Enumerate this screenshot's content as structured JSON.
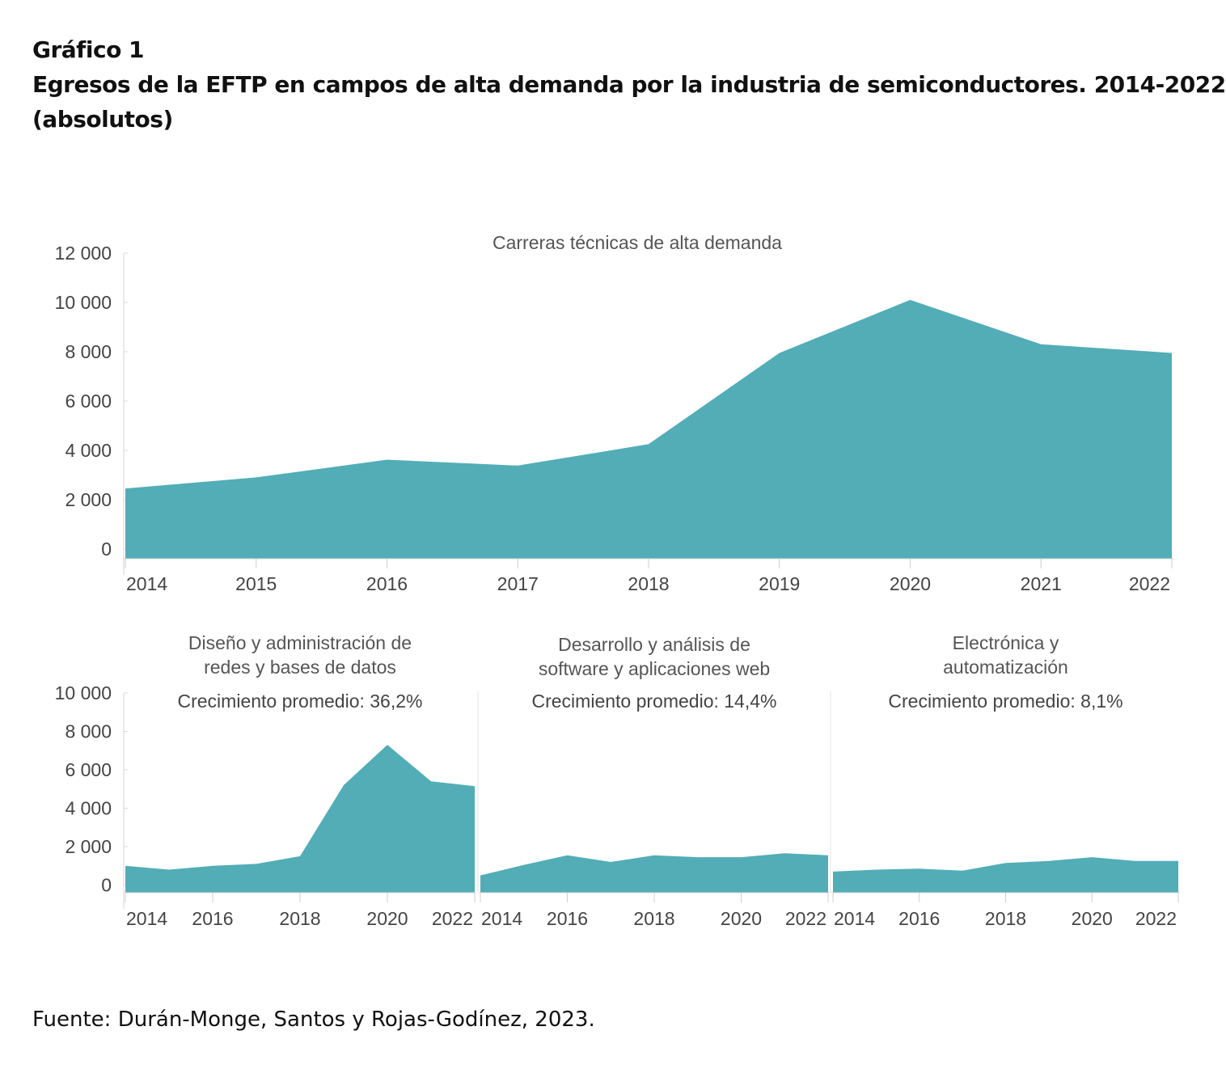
{
  "figure": {
    "number": "Gráfico 1",
    "title": "Egresos de la EFTP en campos de alta demanda por la industria de semiconductores. 2014-2022",
    "units": "(absolutos)",
    "source": "Fuente: Durán-Monge, Santos y Rojas-Godínez, 2023."
  },
  "chart_data": [
    {
      "type": "area",
      "title": "Carreras técnicas de alta demanda",
      "x": [
        2014,
        2015,
        2016,
        2017,
        2018,
        2019,
        2020,
        2021,
        2022
      ],
      "values": [
        2450,
        2900,
        3620,
        3380,
        4250,
        7950,
        10100,
        8300,
        7950
      ],
      "x_ticks": [
        "2014",
        "2015",
        "2016",
        "2017",
        "2018",
        "2019",
        "2020",
        "2021",
        "2022"
      ],
      "y_ticks": [
        0,
        2000,
        4000,
        6000,
        8000,
        10000,
        12000
      ],
      "y_tick_labels": [
        "0",
        "2 000",
        "4 000",
        "6 000",
        "8 000",
        "10 000",
        "12 000"
      ],
      "xlim": [
        2014,
        2022
      ],
      "ylim": [
        -400,
        12000
      ],
      "color": "#52adb7"
    },
    {
      "type": "area",
      "title": [
        "Diseño y administración de",
        "redes y bases de datos"
      ],
      "growth": {
        "label": "Crecimiento promedio:",
        "value": "36,2%"
      },
      "x": [
        2014,
        2015,
        2016,
        2017,
        2018,
        2019,
        2020,
        2021,
        2022
      ],
      "values": [
        1000,
        800,
        1000,
        1100,
        1500,
        5200,
        7300,
        5400,
        5150
      ],
      "x_ticks": [
        "2014",
        "2016",
        "2018",
        "2020",
        "2022"
      ],
      "y_ticks": [
        0,
        2000,
        4000,
        6000,
        8000,
        10000
      ],
      "y_tick_labels": [
        "0",
        "2 000",
        "4 000",
        "6 000",
        "8 000",
        "10 000"
      ],
      "xlim": [
        2014,
        2022
      ],
      "ylim": [
        -400,
        10000
      ],
      "color": "#52adb7"
    },
    {
      "type": "area",
      "title": [
        "Desarrollo y análisis de",
        "software y aplicaciones web"
      ],
      "growth": {
        "label": "Crecimiento promedio:",
        "value": "14,4%"
      },
      "x": [
        2014,
        2015,
        2016,
        2017,
        2018,
        2019,
        2020,
        2021,
        2022
      ],
      "values": [
        500,
        1050,
        1550,
        1200,
        1550,
        1450,
        1450,
        1650,
        1550
      ],
      "x_ticks": [
        "2014",
        "2016",
        "2018",
        "2020",
        "2022"
      ],
      "xlim": [
        2014,
        2022
      ],
      "ylim": [
        -400,
        10000
      ],
      "color": "#52adb7"
    },
    {
      "type": "area",
      "title": [
        "Electrónica y",
        "automatización"
      ],
      "growth": {
        "label": "Crecimiento promedio:",
        "value": "8,1%"
      },
      "x": [
        2014,
        2015,
        2016,
        2017,
        2018,
        2019,
        2020,
        2021,
        2022
      ],
      "values": [
        700,
        800,
        850,
        750,
        1150,
        1250,
        1450,
        1250,
        1250
      ],
      "x_ticks": [
        "2014",
        "2016",
        "2018",
        "2020",
        "2022"
      ],
      "xlim": [
        2014,
        2022
      ],
      "ylim": [
        -400,
        10000
      ],
      "color": "#52adb7"
    }
  ]
}
